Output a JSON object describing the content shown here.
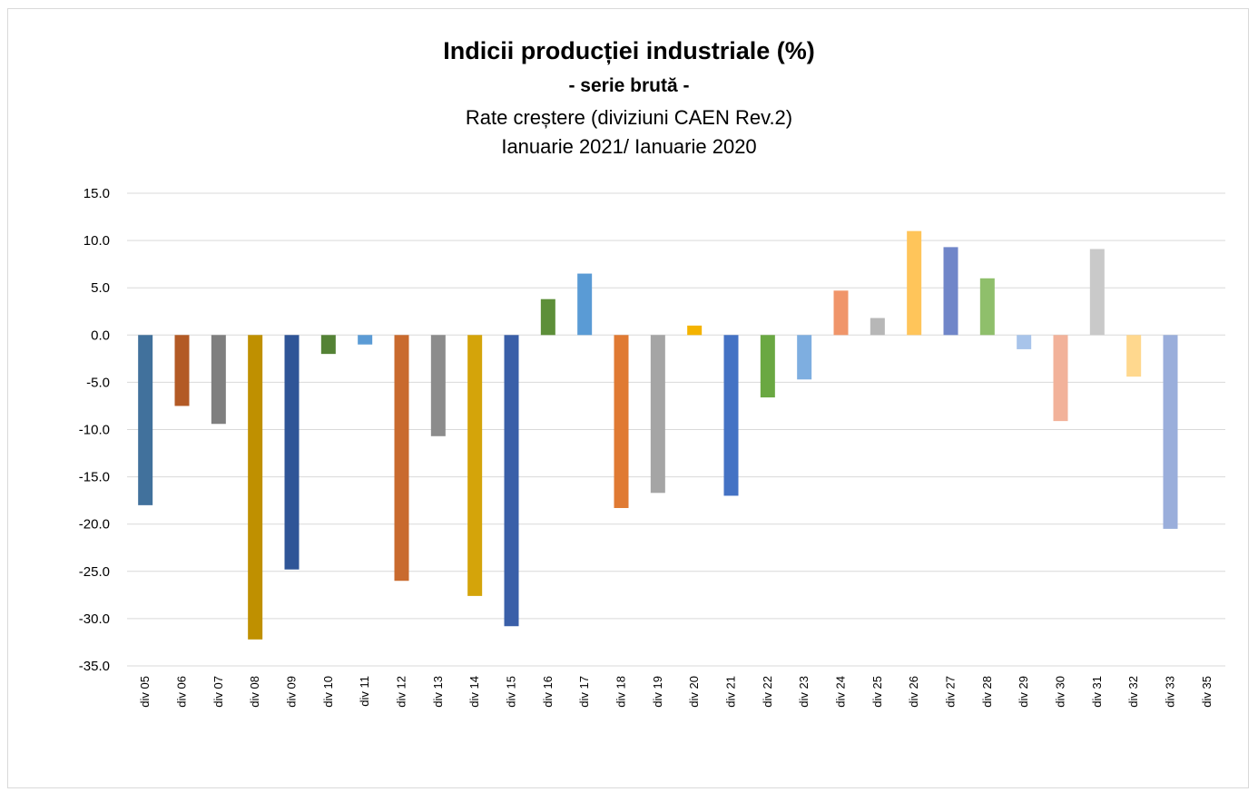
{
  "chart_data": {
    "type": "bar",
    "title": "Indicii producției industriale (%)",
    "subtitle": "- serie brută -",
    "subtitle2": "Rate creștere  (diviziuni CAEN Rev.2)",
    "subtitle3": "Ianuarie 2021/ Ianuarie 2020",
    "xlabel": "",
    "ylabel": "",
    "ylim": [
      -35,
      15
    ],
    "yticks": [
      15,
      10,
      5,
      0,
      -5,
      -10,
      -15,
      -20,
      -25,
      -30,
      -35
    ],
    "ytick_labels": [
      "15.0",
      "10.0",
      "5.0",
      "0.0",
      "-5.0",
      "-10.0",
      "-15.0",
      "-20.0",
      "-25.0",
      "-30.0",
      "-35.0"
    ],
    "grid": true,
    "legend": "none",
    "categories": [
      "div 05",
      "div 06",
      "div 07",
      "div 08",
      "div 09",
      "div 10",
      "div 11",
      "div 12",
      "div 13",
      "div 14",
      "div 15",
      "div 16",
      "div 17",
      "div 18",
      "div 19",
      "div 20",
      "div 21",
      "div 22",
      "div 23",
      "div 24",
      "div 25",
      "div 26",
      "div 27",
      "div 28",
      "div 29",
      "div 30",
      "div 31",
      "div 32",
      "div 33",
      "div 35"
    ],
    "values": [
      -18.0,
      -7.5,
      -9.4,
      -32.2,
      -24.8,
      -2.0,
      -1.0,
      -26.0,
      -10.7,
      -27.6,
      -30.8,
      3.8,
      6.5,
      -18.3,
      -16.7,
      1.0,
      -17.0,
      -6.6,
      -4.7,
      4.7,
      1.8,
      11.0,
      9.3,
      6.0,
      -1.5,
      -9.1,
      9.1,
      -4.4,
      -20.5,
      0.0
    ],
    "colors": [
      "#41719c",
      "#b35a25",
      "#7f7f7f",
      "#bf9000",
      "#2f5597",
      "#548235",
      "#5b9bd5",
      "#c96a2e",
      "#8c8c8c",
      "#d4a40a",
      "#3a5fa8",
      "#5d8f39",
      "#5a9bd5",
      "#e07a33",
      "#a5a5a5",
      "#f4b300",
      "#4472c4",
      "#6aa842",
      "#7eaee0",
      "#f0956a",
      "#b7b7b7",
      "#ffc55a",
      "#7086c9",
      "#8fbf6b",
      "#a8c4ea",
      "#f2b29a",
      "#c9c9c9",
      "#ffd88e",
      "#9aaedb",
      "#e4c0a0"
    ]
  }
}
